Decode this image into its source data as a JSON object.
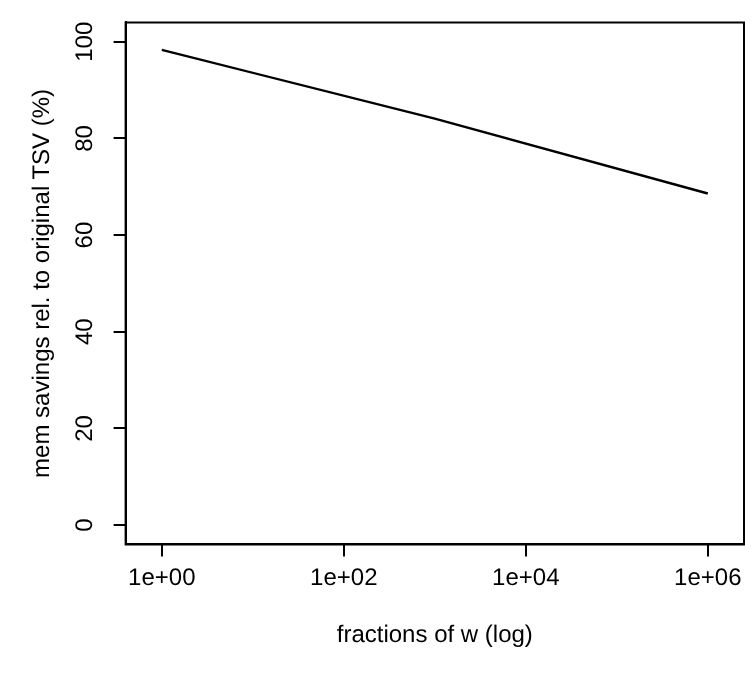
{
  "chart_data": {
    "type": "line",
    "xlabel": "fractions of w (log)",
    "ylabel": "mem savings rel. to original TSV (%)",
    "x": [
      1,
      1000,
      1000000
    ],
    "series": [
      {
        "color": "#000000",
        "values": [
          98.3,
          84.1,
          68.6
        ]
      }
    ],
    "log": "x",
    "xlim": [
      0.4,
      2500000
    ],
    "ylim": [
      -4,
      104
    ],
    "xticks": [
      {
        "value": 1,
        "label": "1e+00"
      },
      {
        "value": 100,
        "label": "1e+02"
      },
      {
        "value": 10000,
        "label": "1e+04"
      },
      {
        "value": 1000000,
        "label": "1e+06"
      }
    ],
    "yticks": [
      0,
      20,
      40,
      60,
      80,
      100
    ],
    "grid": false,
    "legend": false,
    "marker": "none",
    "line_style": "solid"
  }
}
